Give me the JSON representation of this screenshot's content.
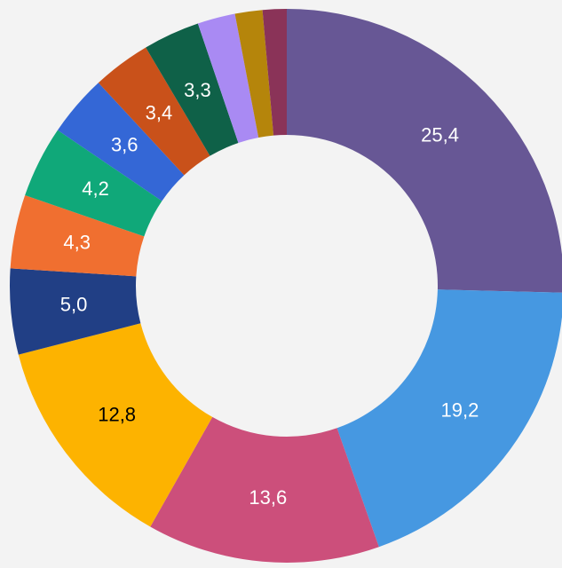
{
  "chart_data": {
    "type": "donut",
    "values": [
      25.4,
      19.2,
      13.6,
      12.8,
      5.0,
      4.3,
      4.2,
      3.6,
      3.4,
      3.3,
      2.2,
      1.6,
      1.4
    ],
    "value_labels": [
      "25,4",
      "19,2",
      "13,6",
      "12,8",
      "5,0",
      "4,3",
      "4,2",
      "3,6",
      "3,4",
      "3,3",
      null,
      null,
      null
    ],
    "colors": [
      "#675795",
      "#4698e1",
      "#cc4f7b",
      "#fdb300",
      "#213f85",
      "#f06f30",
      "#10a879",
      "#3467d6",
      "#c9511a",
      "#0f6148",
      "#a98af3",
      "#b5850b",
      "#8a3358"
    ],
    "label_colors": [
      "#ffffff",
      "#ffffff",
      "#ffffff",
      "#000000",
      "#ffffff",
      "#ffffff",
      "#ffffff",
      "#ffffff",
      "#ffffff",
      "#ffffff",
      "#ffffff",
      "#ffffff",
      "#ffffff"
    ]
  }
}
